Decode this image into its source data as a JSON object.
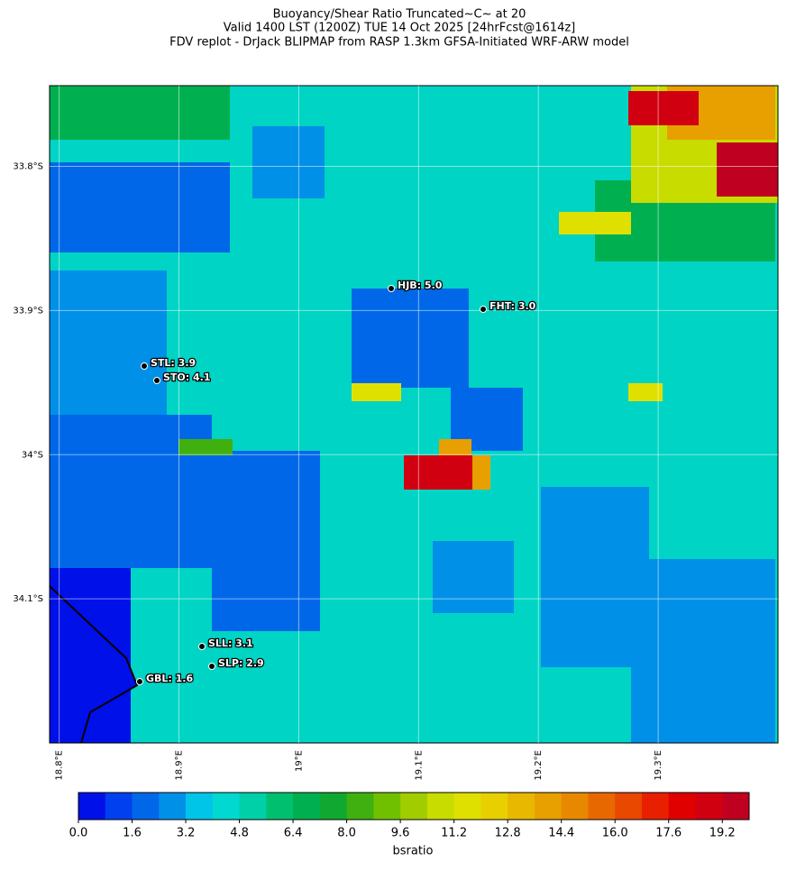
{
  "chart_data": {
    "type": "map",
    "title_lines": [
      "Buoyancy/Shear Ratio Truncated~C~    at 20",
      "Valid 1400 LST (1200Z) TUE 14 Oct 2025 [24hrFcst@1614z]",
      "FDV replot - DrJack BLIPMAP from RASP 1.3km GFSA-Initiated WRF-ARW model"
    ],
    "xlim": [
      18.792,
      19.4
    ],
    "ylim": [
      -34.2,
      -33.744
    ],
    "xticks": [
      {
        "value": 18.8,
        "label": "18.8°E"
      },
      {
        "value": 18.9,
        "label": "18.9°E"
      },
      {
        "value": 19.0,
        "label": "19°E"
      },
      {
        "value": 19.1,
        "label": "19.1°E"
      },
      {
        "value": 19.2,
        "label": "19.2°E"
      },
      {
        "value": 19.3,
        "label": "19.3°E"
      }
    ],
    "yticks": [
      {
        "value": -33.8,
        "label": "33.8°S"
      },
      {
        "value": -33.9,
        "label": "33.9°S"
      },
      {
        "value": -34.0,
        "label": "34°S"
      },
      {
        "value": -34.1,
        "label": "34.1°S"
      }
    ],
    "stations": [
      "HJB: 5.0",
      "FHT: 3.0",
      "STL: 3.9",
      "STO: 4.1",
      "SLL: 3.1",
      "SLP: 2.9",
      "GBL: 1.6"
    ],
    "colorbar": {
      "label": "bsratio",
      "lim": [
        0,
        20
      ],
      "colors": [
        "#0010e8",
        "#0040ee",
        "#0068e8",
        "#0090e8",
        "#00c4e8",
        "#00d8d0",
        "#00d0a8",
        "#00c070",
        "#00b050",
        "#10a830",
        "#40b010",
        "#70c000",
        "#a0cc00",
        "#c8dc00",
        "#e0e000",
        "#e8d000",
        "#e8b800",
        "#e8a000",
        "#e88800",
        "#e86800",
        "#e84800",
        "#e82000",
        "#e00000",
        "#d00010",
        "#c00020"
      ],
      "ticks": [
        {
          "value": 0,
          "label": "0.0"
        },
        1.6,
        3.2,
        4.8,
        6.4,
        {
          "value": 8,
          "label": "8.0"
        },
        9.6,
        11.2,
        12.8,
        14.4,
        {
          "value": 16,
          "label": "16.0"
        },
        17.6,
        19.2
      ]
    }
  }
}
